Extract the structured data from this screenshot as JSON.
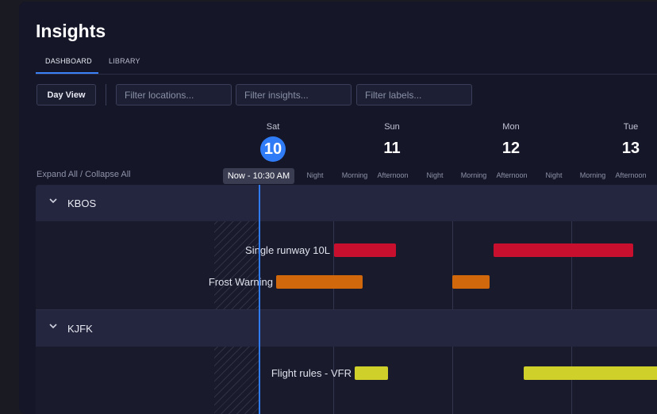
{
  "page": {
    "title": "Insights"
  },
  "tabs": [
    {
      "label": "DASHBOARD",
      "active": true
    },
    {
      "label": "LIBRARY",
      "active": false
    }
  ],
  "toolbar": {
    "view_button": "Day View",
    "filters": [
      {
        "placeholder": "Filter locations..."
      },
      {
        "placeholder": "Filter insights..."
      },
      {
        "placeholder": "Filter labels..."
      }
    ]
  },
  "timeline": {
    "days": [
      {
        "name": "Sat",
        "number": "10",
        "today": true
      },
      {
        "name": "Sun",
        "number": "11",
        "today": false
      },
      {
        "name": "Mon",
        "number": "12",
        "today": false
      },
      {
        "name": "Tue",
        "number": "13",
        "today": false
      }
    ],
    "periods": [
      "Night",
      "Morning",
      "Afternoon",
      "Night",
      "Morning",
      "Afternoon",
      "Night",
      "Morning",
      "Afternoon"
    ],
    "expand_collapse": "Expand All / Collapse All",
    "now_marker": "Now - 10:30 AM"
  },
  "colors": {
    "accent": "#2f7cf6",
    "critical": "#c8102e",
    "warning": "#d2680c",
    "caution": "#cfd12a"
  },
  "groups": [
    {
      "station": "KBOS",
      "rows": [
        {
          "label": "Single runway 10L",
          "severity": "critical"
        },
        {
          "label": "Frost Warning",
          "severity": "warning"
        }
      ]
    },
    {
      "station": "KJFK",
      "rows": [
        {
          "label": "Flight rules - VFR",
          "severity": "caution"
        }
      ]
    }
  ]
}
